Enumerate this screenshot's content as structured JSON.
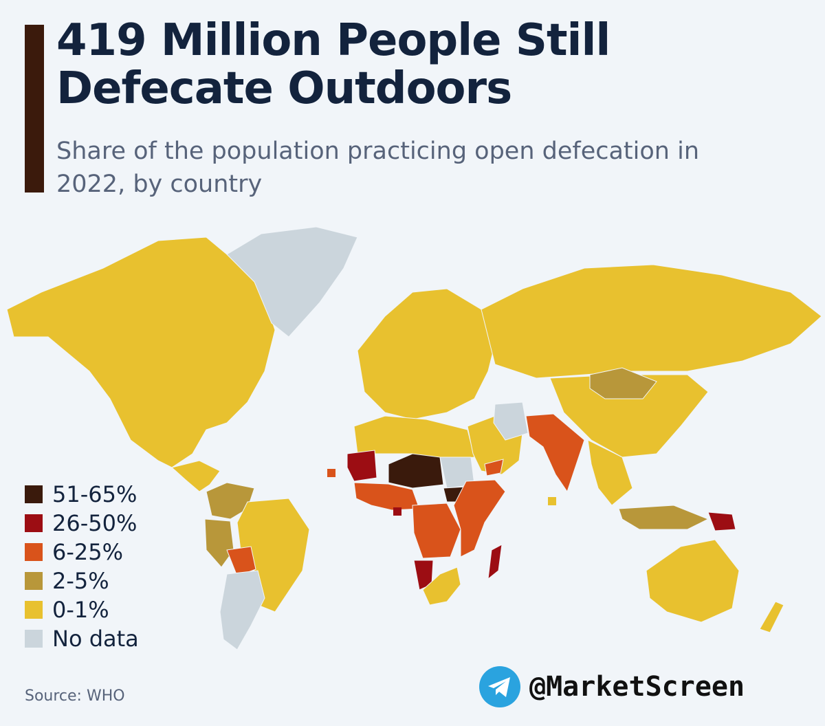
{
  "header": {
    "title": "419 Million People Still Defecate Outdoors",
    "subtitle": "Share of the population practicing open defecation in 2022, by country"
  },
  "colors": {
    "c51_65": "#3a1a0c",
    "c26_50": "#9c0d13",
    "c6_25": "#d9531b",
    "c2_5": "#b8973a",
    "c0_1": "#e8c12f",
    "no_data": "#cbd5dc",
    "ocean": "#f1f5f9",
    "accent": "#3b1a0c"
  },
  "legend": [
    {
      "label": "51-65%",
      "color": "#3a1a0c"
    },
    {
      "label": "26-50%",
      "color": "#9c0d13"
    },
    {
      "label": "6-25%",
      "color": "#d9531b"
    },
    {
      "label": "2-5%",
      "color": "#b8973a"
    },
    {
      "label": "0-1%",
      "color": "#e8c12f"
    },
    {
      "label": "No data",
      "color": "#cbd5dc"
    }
  ],
  "map": {
    "regions": [
      {
        "name": "north-america",
        "category": "0-1%"
      },
      {
        "name": "greenland",
        "category": "No data"
      },
      {
        "name": "central-america",
        "category": "0-1%"
      },
      {
        "name": "colombia-venezuela",
        "category": "2-5%"
      },
      {
        "name": "peru",
        "category": "2-5%"
      },
      {
        "name": "brazil",
        "category": "0-1%"
      },
      {
        "name": "bolivia",
        "category": "6-25%"
      },
      {
        "name": "argentina",
        "category": "No data"
      },
      {
        "name": "europe",
        "category": "0-1%"
      },
      {
        "name": "russia",
        "category": "0-1%"
      },
      {
        "name": "north-africa",
        "category": "0-1%"
      },
      {
        "name": "mauritania",
        "category": "26-50%"
      },
      {
        "name": "niger-chad",
        "category": "51-65%"
      },
      {
        "name": "sudan",
        "category": "No data"
      },
      {
        "name": "south-sudan",
        "category": "51-65%"
      },
      {
        "name": "west-africa",
        "category": "6-25%"
      },
      {
        "name": "central-africa",
        "category": "6-25%"
      },
      {
        "name": "east-africa",
        "category": "6-25%"
      },
      {
        "name": "namibia",
        "category": "26-50%"
      },
      {
        "name": "southern-africa",
        "category": "0-1%"
      },
      {
        "name": "madagascar",
        "category": "26-50%"
      },
      {
        "name": "middle-east",
        "category": "0-1%"
      },
      {
        "name": "iran",
        "category": "No data"
      },
      {
        "name": "yemen",
        "category": "6-25%"
      },
      {
        "name": "india",
        "category": "6-25%"
      },
      {
        "name": "mongolia",
        "category": "2-5%"
      },
      {
        "name": "china",
        "category": "0-1%"
      },
      {
        "name": "southeast-asia",
        "category": "0-1%"
      },
      {
        "name": "indonesia",
        "category": "2-5%"
      },
      {
        "name": "papua-new-guinea",
        "category": "26-50%"
      },
      {
        "name": "australia",
        "category": "0-1%"
      },
      {
        "name": "new-zealand",
        "category": "0-1%"
      }
    ]
  },
  "source": "Source: WHO",
  "channel": {
    "handle": "@MarketScreen",
    "icon": "telegram-icon"
  }
}
